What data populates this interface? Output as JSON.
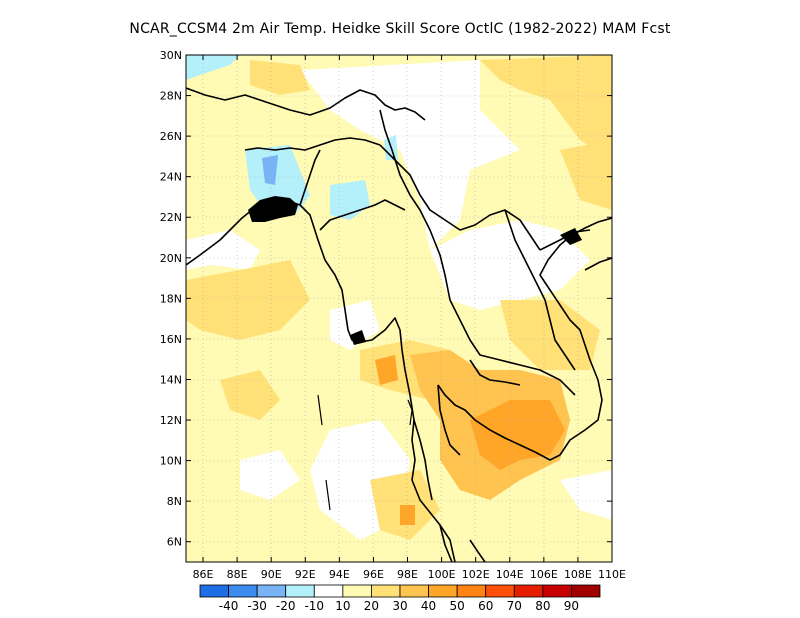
{
  "title": "NCAR_CCSM4  2m Air Temp. Heidke Skill Score OctlC (1982-2022) MAM Fcst",
  "map": {
    "lat_ticks": [
      "6N",
      "8N",
      "10N",
      "12N",
      "14N",
      "16N",
      "18N",
      "20N",
      "22N",
      "24N",
      "26N",
      "28N",
      "30N"
    ],
    "lon_ticks": [
      "86E",
      "88E",
      "90E",
      "92E",
      "94E",
      "96E",
      "98E",
      "100E",
      "102E",
      "104E",
      "106E",
      "108E",
      "110E"
    ],
    "lat_range": [
      5,
      30
    ],
    "lon_range": [
      85,
      110
    ]
  },
  "colorbar": {
    "colors": [
      "#1e6ee6",
      "#3c8cf0",
      "#78b4f5",
      "#b4f0fa",
      "#ffffff",
      "#fffab4",
      "#ffe178",
      "#ffc350",
      "#ffa528",
      "#ff8214",
      "#ff500a",
      "#e61e00",
      "#c80000",
      "#a00000"
    ],
    "labels": [
      "-40",
      "-30",
      "-20",
      "-10",
      "10",
      "20",
      "30",
      "40",
      "50",
      "60",
      "70",
      "80",
      "90"
    ]
  }
}
